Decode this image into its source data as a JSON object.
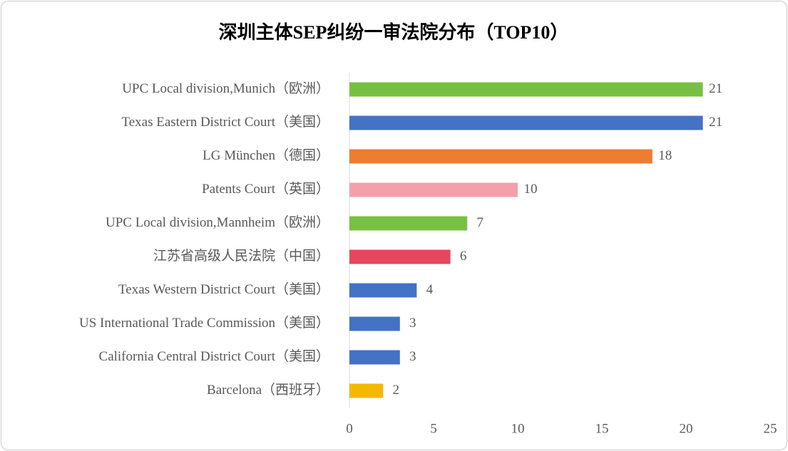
{
  "chart_data": {
    "type": "bar",
    "orientation": "horizontal",
    "title": "深圳主体SEP纠纷一审法院分布（TOP10）",
    "categories": [
      "UPC Local division,Munich（欧洲）",
      "Texas Eastern District Court（美国）",
      "LG München（德国）",
      "Patents Court（英国）",
      "UPC Local division,Mannheim（欧洲）",
      "江苏省高级人民法院（中国）",
      "Texas Western District Court（美国）",
      "US International Trade Commission（美国）",
      "California Central District Court（美国）",
      "Barcelona（西班牙）"
    ],
    "values": [
      21,
      21,
      18,
      10,
      7,
      6,
      4,
      3,
      3,
      2
    ],
    "colors": [
      "#78c043",
      "#4472c4",
      "#ed7d31",
      "#f4a0ac",
      "#78c043",
      "#e6475e",
      "#4472c4",
      "#4472c4",
      "#4472c4",
      "#f5b800"
    ],
    "xlim": [
      0,
      25
    ],
    "xticks": [
      0,
      5,
      10,
      15,
      20,
      25
    ],
    "grid": false
  }
}
